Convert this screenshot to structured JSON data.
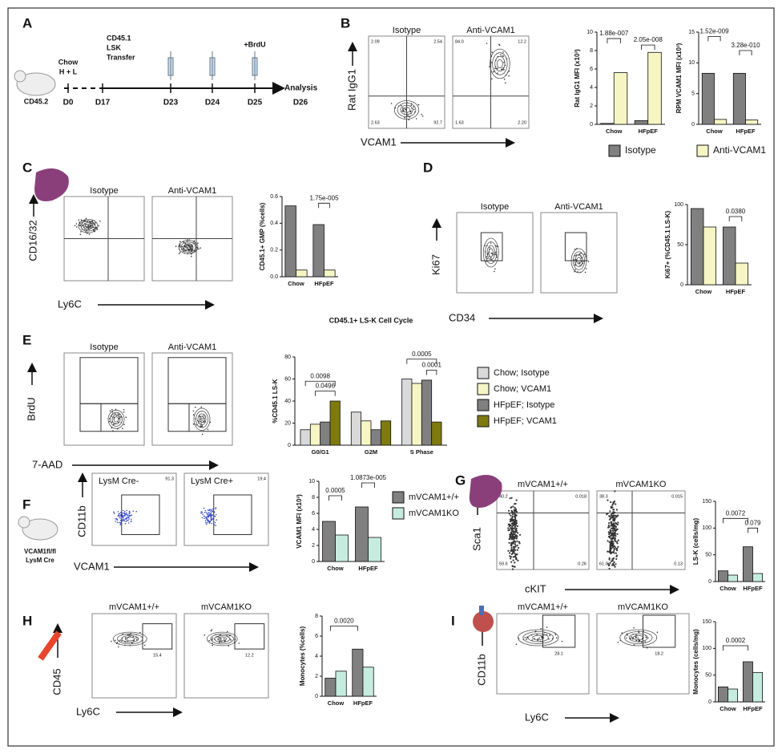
{
  "timeline": {
    "label": "A",
    "mouse": "CD45.2",
    "diet": [
      "Chow",
      "H + L"
    ],
    "transfer": [
      "CD45.1",
      "LSK",
      "Transfer"
    ],
    "brdu": "+BrdU",
    "analysis": "Analysis",
    "days": [
      "D0",
      "D17",
      "D23",
      "D24",
      "D25",
      "D26"
    ]
  },
  "flow": [
    {
      "label": "B",
      "plots": [
        "Isotype",
        "Anti-VCAM1"
      ],
      "x_label": "VCAM1",
      "y_label": "Rat IgG1",
      "gates": [
        [
          "2.09",
          "2.54",
          "2.63",
          "92.7"
        ],
        [
          "84.0",
          "12.2",
          "1.63",
          "2.20"
        ]
      ]
    },
    {
      "label": "C",
      "plots": [
        "Isotype",
        "Anti-VCAM1"
      ],
      "x_label": "Ly6C",
      "y_label": "CD16/32"
    },
    {
      "label": "D",
      "plots": [
        "Isotype",
        "Anti-VCAM1"
      ],
      "x_label": "CD34",
      "y_label": "Ki67"
    },
    {
      "label": "E",
      "plots": [
        "Isotype",
        "Anti-VCAM1"
      ],
      "x_label": "7-AAD",
      "y_label": "BrdU"
    },
    {
      "label": "F",
      "plots": [
        "LysM Cre-",
        "LysM Cre+"
      ],
      "x_label": "VCAM1",
      "y_label": "CD11b",
      "gates": [
        [
          "91.3"
        ],
        [
          "19.4"
        ]
      ],
      "mouse": [
        "VCAM1fl/fl",
        "LysM Cre"
      ]
    },
    {
      "label": "G",
      "plots": [
        "mVCAM1+/+",
        "mVCAM1KO"
      ],
      "x_label": "cKIT",
      "y_label": "Sca1",
      "gates": [
        [
          "40.2",
          "0.018",
          "59.6",
          "0.26"
        ],
        [
          "38.3",
          "0.015",
          "61.0",
          "0.13"
        ]
      ]
    },
    {
      "label": "H",
      "plots": [
        "mVCAM1+/+",
        "mVCAM1KO"
      ],
      "x_label": "Ly6C",
      "y_label": "CD45",
      "gates": [
        [
          "15.4"
        ],
        [
          "12.2"
        ]
      ]
    },
    {
      "label": "I",
      "plots": [
        "mVCAM1+/+",
        "mVCAM1KO"
      ],
      "x_label": "Ly6C",
      "y_label": "CD11b",
      "gates": [
        [
          "28.1"
        ],
        [
          "18.2"
        ]
      ]
    }
  ],
  "chart_data": [
    {
      "type": "bar",
      "y_label": "Rat IgG1 MFI (x10³)",
      "categories": [
        "Chow",
        "HFpEF"
      ],
      "series": [
        {
          "name": "Isotype",
          "color": "#808080",
          "values": [
            0.1,
            0.4
          ]
        },
        {
          "name": "Anti-VCAM1",
          "color": "#f6f6c4",
          "values": [
            5.6,
            7.8
          ]
        }
      ],
      "ylim": [
        0,
        10
      ],
      "yticks": [
        0,
        2,
        4,
        6,
        8,
        10
      ],
      "annotations": [
        "1.88e-007",
        "2.05e-008"
      ]
    },
    {
      "type": "bar",
      "y_label": "RPM VCAM1 MFI (x10³)",
      "categories": [
        "Chow",
        "HFpEF"
      ],
      "series": [
        {
          "color": "#808080",
          "values": [
            8.3,
            8.3
          ]
        },
        {
          "color": "#f6f6c4",
          "values": [
            0.8,
            0.7
          ]
        }
      ],
      "ylim": [
        0,
        15
      ],
      "yticks": [
        0,
        5,
        10,
        15
      ],
      "annotations": [
        "1.52e-009",
        "3.28e-010"
      ]
    },
    {
      "type": "bar",
      "y_label": "CD45.1+ GMP (%cells)",
      "categories": [
        "Chow",
        "HFpEF"
      ],
      "series": [
        {
          "color": "#808080",
          "values": [
            0.53,
            0.39
          ]
        },
        {
          "color": "#f6f6c4",
          "values": [
            0.05,
            0.05
          ]
        }
      ],
      "ylim": [
        0,
        0.6
      ],
      "yticks": [
        {
          "value": 0,
          "label": "0.0"
        },
        0.2,
        0.4,
        0.6
      ],
      "annotations": [
        "1.75e-005"
      ]
    },
    {
      "type": "bar",
      "y_label": "Ki67+ (%CD45.1 LS-K)",
      "categories": [
        "Chow",
        "HFpEF"
      ],
      "series": [
        {
          "color": "#808080",
          "values": [
            95,
            72
          ]
        },
        {
          "color": "#f6f6c4",
          "values": [
            72,
            27
          ]
        }
      ],
      "ylim": [
        0,
        100
      ],
      "yticks": [
        0,
        50,
        100
      ],
      "annotations": [
        "0.0380"
      ]
    },
    {
      "type": "bar",
      "title": "CD45.1+ LS-K Cell Cycle",
      "y_label": "%CD45.1 LS-K",
      "categories": [
        "G0/G1",
        "G2M",
        "S Phase"
      ],
      "series": [
        {
          "name": "Chow; Isotype",
          "color": "#d9d9d9",
          "values": [
            14,
            30,
            60
          ]
        },
        {
          "name": "Chow; VCAM1",
          "color": "#f6f6c4",
          "values": [
            19,
            22,
            56
          ]
        },
        {
          "name": "HFpEF; Isotype",
          "color": "#808080",
          "values": [
            21,
            14,
            59
          ]
        },
        {
          "name": "HFpEF; VCAM1",
          "color": "#7f7a10",
          "values": [
            40,
            22,
            21
          ]
        }
      ],
      "ylim": [
        0,
        80
      ],
      "yticks": [
        0,
        20,
        40,
        60,
        80
      ],
      "annotations": [
        "0.0098",
        "0.0496",
        "0.0005",
        "0.0001"
      ]
    },
    {
      "type": "bar",
      "y_label": "VCAM1 MFI (x10³)",
      "categories": [
        "Chow",
        "HFpEF"
      ],
      "series": [
        {
          "name": "mVCAM1+/+",
          "color": "#808080",
          "values": [
            5.0,
            6.8
          ]
        },
        {
          "name": "mVCAM1KO",
          "color": "#c6ece0",
          "values": [
            3.3,
            3.0
          ]
        }
      ],
      "ylim": [
        0,
        10
      ],
      "yticks": [
        0,
        2,
        4,
        6,
        8,
        10
      ],
      "annotations": [
        "0.0005",
        "1.0873e-005"
      ]
    },
    {
      "type": "bar",
      "y_label": "LS-K (cells/mg)",
      "categories": [
        "Chow",
        "HFpEF"
      ],
      "series": [
        {
          "color": "#808080",
          "values": [
            20,
            65
          ]
        },
        {
          "color": "#c6ece0",
          "values": [
            12,
            15
          ]
        }
      ],
      "ylim": [
        0,
        150
      ],
      "yticks": [
        0,
        50,
        100,
        150
      ],
      "annotations": [
        "0.0072",
        "0.079"
      ]
    },
    {
      "type": "bar",
      "y_label": "Monocytes (%cells)",
      "categories": [
        "Chow",
        "HFpEF"
      ],
      "series": [
        {
          "color": "#808080",
          "values": [
            1.8,
            4.7
          ]
        },
        {
          "color": "#c6ece0",
          "values": [
            2.5,
            2.9
          ]
        }
      ],
      "ylim": [
        0,
        8
      ],
      "yticks": [
        0,
        2,
        4,
        6,
        8
      ],
      "annotations": [
        "0.0020"
      ]
    },
    {
      "type": "bar",
      "y_label": "Monocytes (cells/mg)",
      "categories": [
        "Chow",
        "HFpEF"
      ],
      "series": [
        {
          "color": "#808080",
          "values": [
            28,
            75
          ]
        },
        {
          "color": "#c6ece0",
          "values": [
            24,
            55
          ]
        }
      ],
      "ylim": [
        0,
        150
      ],
      "yticks": [
        0,
        50,
        100,
        150
      ],
      "annotations": [
        "0.0002"
      ]
    }
  ]
}
